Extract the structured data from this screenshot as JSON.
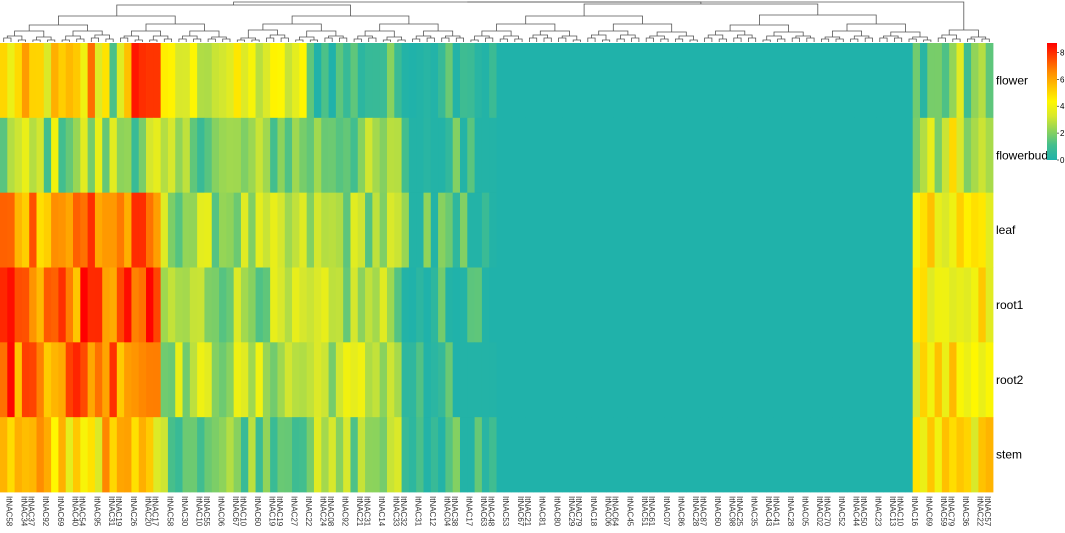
{
  "chart_data": {
    "type": "heatmap",
    "title": "",
    "xlabel": "",
    "ylabel": "",
    "rows": [
      "flower",
      "flowerbud",
      "leaf",
      "root1",
      "root2",
      "stem"
    ],
    "n_columns": 136,
    "columns_truncated_note": "",
    "column_labels_visible": [
      "ItNAC58",
      "ItNAC34",
      "ItNAC37",
      "ItNAC92",
      "ItNAC69",
      "ItNAC40",
      "ItNAC54",
      "ItNAC95",
      "ItNAC31",
      "ItNAC19",
      "ItNAC26",
      "ItNAC20",
      "ItNAC17",
      "ItNAC58",
      "ItNAC30",
      "ItNAC10",
      "ItNAC55",
      "ItNAC06",
      "ItNAC67",
      "ItNAC10",
      "ItNAC60",
      "ItNAC19",
      "ItNAC19",
      "ItNAC27",
      "ItNAC22",
      "ItNAC24",
      "ItNAC08",
      "ItNAC92",
      "ItNAC21",
      "ItNAC31",
      "ItNAC14",
      "ItNAC33",
      "ItNAC32",
      "ItNAC31",
      "ItNAC12",
      "ItNAC04",
      "ItNAC38",
      "ItNAC17",
      "ItNAC63",
      "ItNAC48",
      "ItNAC53",
      "ItNAC67",
      "ItNAC21",
      "ItNAC81",
      "ItNAC80",
      "ItNAC29",
      "ItNAC79",
      "ItNAC18",
      "ItNAC06",
      "ItNAC64",
      "ItNAC45",
      "ItNAC51",
      "ItNAC61",
      "ItNAC07",
      "ItNAC86",
      "ItNAC28",
      "ItNAC87",
      "ItNAC60",
      "ItNAC98",
      "ItNAC25",
      "ItNAC35",
      "ItNAC43",
      "ItNAC41",
      "ItNAC28",
      "ItNAC05",
      "ItNAC02",
      "ItNAC70",
      "ItNAC52",
      "ItNAC44",
      "ItNAC50",
      "ItNAC23",
      "ItNAC13",
      "ItNAC10",
      "ItNAC16",
      "ItNAC69",
      "ItNAC59",
      "ItNAC79",
      "ItNAC36",
      "ItNAC22",
      "ItNAC57"
    ],
    "colorbar": {
      "min": 0,
      "max": 8.7,
      "ticks": [
        "0",
        "2",
        "4",
        "6",
        "8"
      ],
      "colors": [
        "#20B2AA",
        "#43BE8E",
        "#8DD35B",
        "#D8E82C",
        "#FFF700",
        "#FFC400",
        "#FF8C00",
        "#FF4500",
        "#FF0000"
      ]
    },
    "legend_position": "top-right",
    "dendrogram": "columns"
  }
}
